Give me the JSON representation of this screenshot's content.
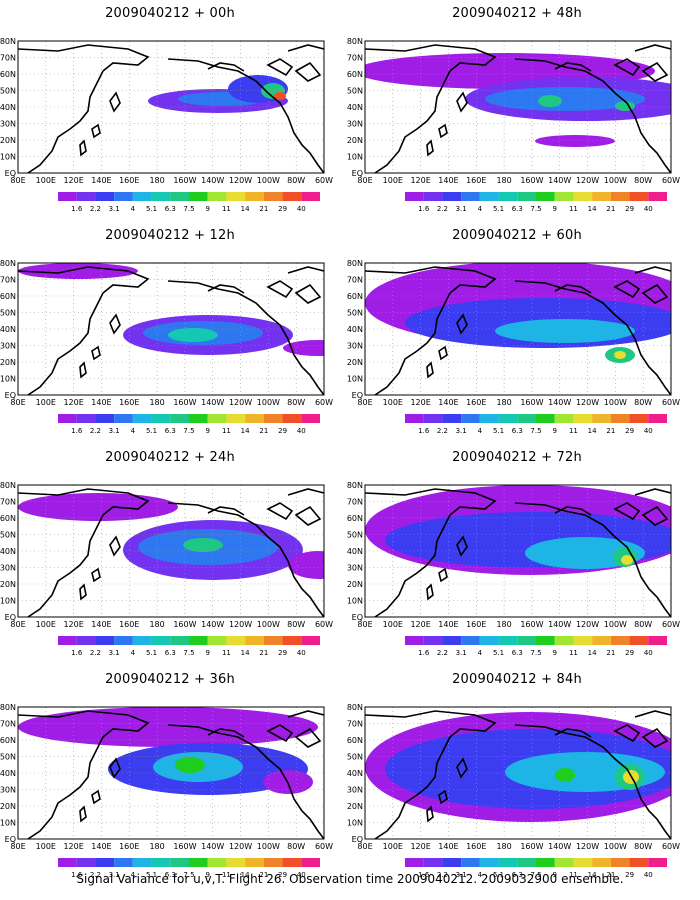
{
  "figure": {
    "caption": "Signal Variance for u,v,T. Flight 26. Observation time 2009040212. 2009032900 ensemble."
  },
  "axes": {
    "lat_labels": [
      "80N",
      "70N",
      "60N",
      "50N",
      "40N",
      "30N",
      "20N",
      "10N",
      "EQ"
    ],
    "lon_labels": [
      "80E",
      "100E",
      "120E",
      "140E",
      "160E",
      "180",
      "160W",
      "140W",
      "120W",
      "100W",
      "80W",
      "60W"
    ]
  },
  "colorbar": {
    "levels": [
      "1.6",
      "2.2",
      "3.1",
      "4",
      "5.1",
      "6.3",
      "7.5",
      "9",
      "11",
      "14",
      "21",
      "29",
      "40"
    ],
    "colors": [
      "#a01de6",
      "#7332f0",
      "#3c3cf0",
      "#2d78f0",
      "#1eb4e6",
      "#14c8b4",
      "#1ec882",
      "#1ecd1e",
      "#a0e632",
      "#e6dc32",
      "#f0b428",
      "#f08228",
      "#f05028",
      "#f01e8c"
    ]
  },
  "panels": [
    {
      "title": "2009040212 + 00h",
      "blobs": [
        {
          "cx": 200,
          "cy": 60,
          "rx": 70,
          "ry": 12,
          "level": 1
        },
        {
          "cx": 205,
          "cy": 58,
          "rx": 45,
          "ry": 7,
          "level": 3
        },
        {
          "cx": 240,
          "cy": 48,
          "rx": 30,
          "ry": 14,
          "level": 2
        },
        {
          "cx": 255,
          "cy": 50,
          "rx": 12,
          "ry": 8,
          "level": 6
        },
        {
          "cx": 262,
          "cy": 55,
          "rx": 6,
          "ry": 4,
          "level": 12
        }
      ]
    },
    {
      "title": "2009040212 + 48h",
      "blobs": [
        {
          "cx": 140,
          "cy": 30,
          "rx": 150,
          "ry": 18,
          "level": 0
        },
        {
          "cx": 220,
          "cy": 58,
          "rx": 120,
          "ry": 22,
          "level": 1
        },
        {
          "cx": 200,
          "cy": 58,
          "rx": 80,
          "ry": 12,
          "level": 3
        },
        {
          "cx": 185,
          "cy": 60,
          "rx": 12,
          "ry": 6,
          "level": 6
        },
        {
          "cx": 260,
          "cy": 65,
          "rx": 10,
          "ry": 5,
          "level": 6
        },
        {
          "cx": 210,
          "cy": 100,
          "rx": 40,
          "ry": 6,
          "level": 0
        }
      ]
    },
    {
      "title": "2009040212 + 12h",
      "blobs": [
        {
          "cx": 60,
          "cy": 8,
          "rx": 60,
          "ry": 8,
          "level": 0
        },
        {
          "cx": 190,
          "cy": 72,
          "rx": 85,
          "ry": 20,
          "level": 1
        },
        {
          "cx": 185,
          "cy": 70,
          "rx": 60,
          "ry": 12,
          "level": 3
        },
        {
          "cx": 175,
          "cy": 72,
          "rx": 25,
          "ry": 7,
          "level": 5
        },
        {
          "cx": 300,
          "cy": 85,
          "rx": 35,
          "ry": 8,
          "level": 0
        }
      ]
    },
    {
      "title": "2009040212 + 60h",
      "blobs": [
        {
          "cx": 165,
          "cy": 40,
          "rx": 165,
          "ry": 42,
          "level": 0
        },
        {
          "cx": 180,
          "cy": 60,
          "rx": 140,
          "ry": 25,
          "level": 2
        },
        {
          "cx": 200,
          "cy": 68,
          "rx": 70,
          "ry": 12,
          "level": 4
        },
        {
          "cx": 255,
          "cy": 92,
          "rx": 15,
          "ry": 8,
          "level": 6
        },
        {
          "cx": 255,
          "cy": 92,
          "rx": 6,
          "ry": 4,
          "level": 9
        }
      ]
    },
    {
      "title": "2009040212 + 24h",
      "blobs": [
        {
          "cx": 80,
          "cy": 22,
          "rx": 80,
          "ry": 14,
          "level": 0
        },
        {
          "cx": 195,
          "cy": 65,
          "rx": 90,
          "ry": 30,
          "level": 1
        },
        {
          "cx": 190,
          "cy": 62,
          "rx": 70,
          "ry": 18,
          "level": 3
        },
        {
          "cx": 185,
          "cy": 60,
          "rx": 20,
          "ry": 7,
          "level": 6
        },
        {
          "cx": 300,
          "cy": 80,
          "rx": 30,
          "ry": 14,
          "level": 0
        }
      ]
    },
    {
      "title": "2009040212 + 72h",
      "blobs": [
        {
          "cx": 165,
          "cy": 45,
          "rx": 165,
          "ry": 45,
          "level": 0
        },
        {
          "cx": 170,
          "cy": 55,
          "rx": 150,
          "ry": 28,
          "level": 2
        },
        {
          "cx": 220,
          "cy": 68,
          "rx": 60,
          "ry": 16,
          "level": 4
        },
        {
          "cx": 260,
          "cy": 72,
          "rx": 12,
          "ry": 10,
          "level": 6
        },
        {
          "cx": 262,
          "cy": 75,
          "rx": 6,
          "ry": 5,
          "level": 9
        }
      ]
    },
    {
      "title": "2009040212 + 36h",
      "blobs": [
        {
          "cx": 150,
          "cy": 20,
          "rx": 150,
          "ry": 20,
          "level": 0
        },
        {
          "cx": 190,
          "cy": 62,
          "rx": 100,
          "ry": 26,
          "level": 2
        },
        {
          "cx": 180,
          "cy": 60,
          "rx": 45,
          "ry": 15,
          "level": 4
        },
        {
          "cx": 172,
          "cy": 58,
          "rx": 15,
          "ry": 8,
          "level": 7
        },
        {
          "cx": 270,
          "cy": 75,
          "rx": 25,
          "ry": 12,
          "level": 0
        }
      ]
    },
    {
      "title": "2009040212 + 84h",
      "blobs": [
        {
          "cx": 165,
          "cy": 60,
          "rx": 165,
          "ry": 55,
          "level": 0
        },
        {
          "cx": 170,
          "cy": 62,
          "rx": 150,
          "ry": 40,
          "level": 2
        },
        {
          "cx": 220,
          "cy": 65,
          "rx": 80,
          "ry": 20,
          "level": 4
        },
        {
          "cx": 200,
          "cy": 68,
          "rx": 10,
          "ry": 7,
          "level": 7
        },
        {
          "cx": 265,
          "cy": 70,
          "rx": 15,
          "ry": 13,
          "level": 6
        },
        {
          "cx": 266,
          "cy": 70,
          "rx": 8,
          "ry": 7,
          "level": 9
        }
      ]
    }
  ]
}
